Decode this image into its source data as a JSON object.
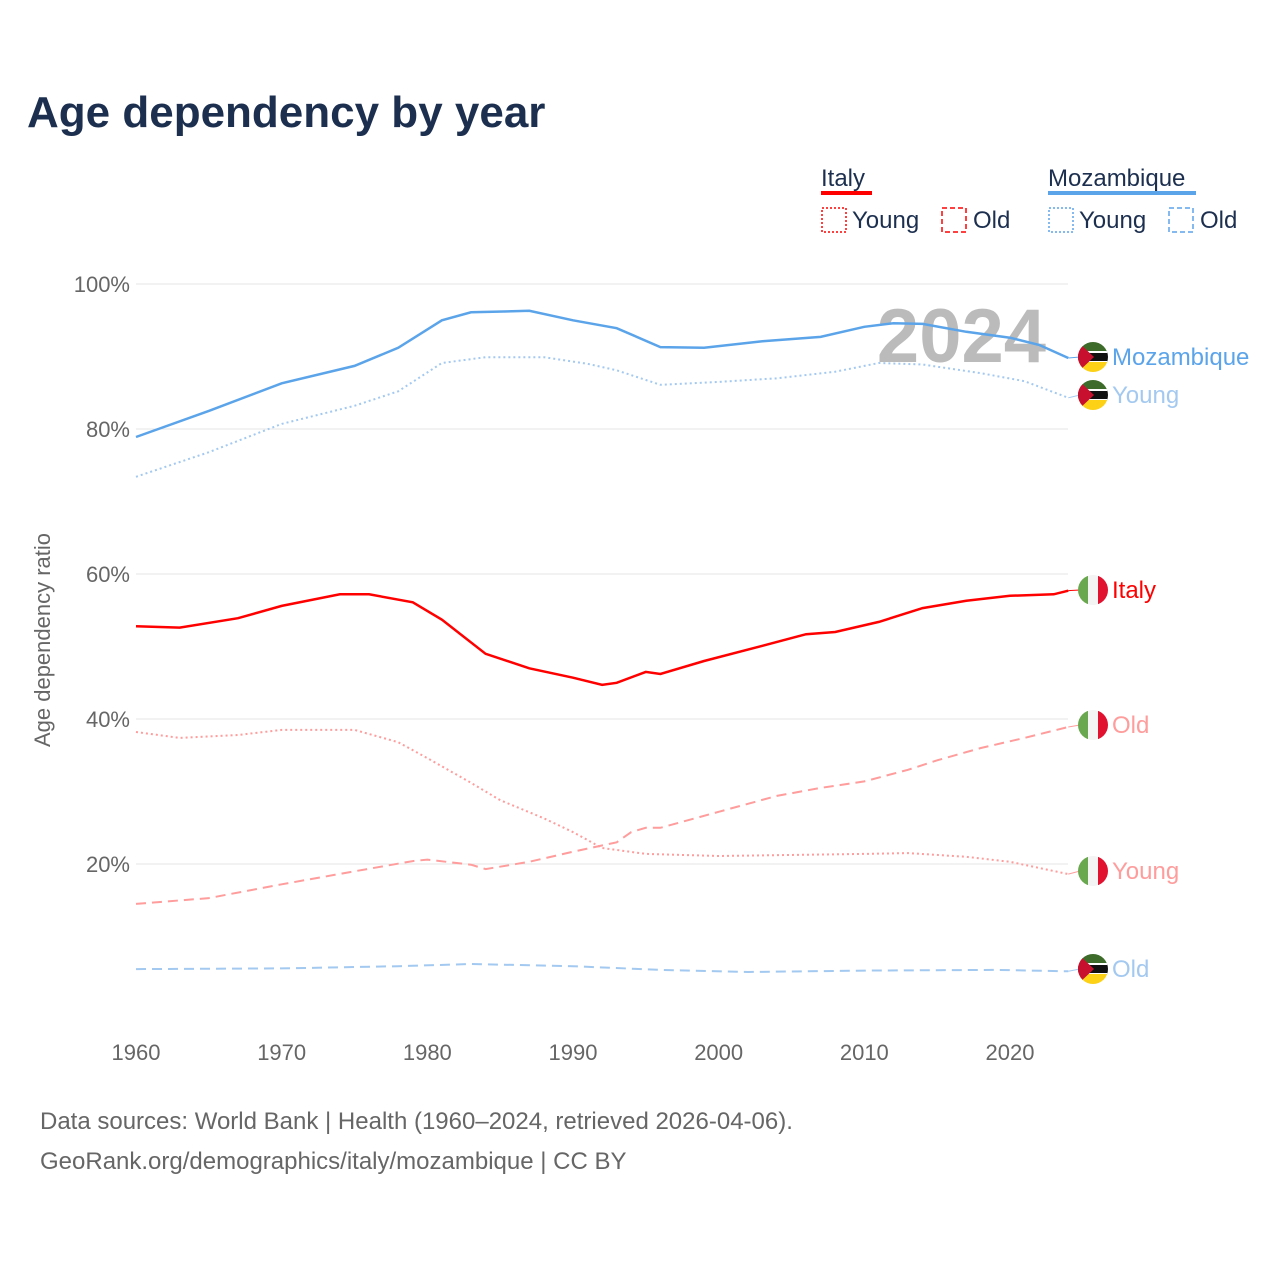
{
  "title": "Age dependency by year",
  "footer": {
    "line1": "Data sources: World Bank | Health (1960–2024, retrieved 2026-04-06).",
    "line2": "GeoRank.org/demographics/italy/mozambique | CC BY"
  },
  "legend": {
    "italy": "Italy",
    "mozambique": "Mozambique",
    "young": "Young",
    "old": "Old"
  },
  "year_watermark": "2024",
  "colors": {
    "italy": "#ff0000",
    "italy_light": "#ff9c9c",
    "moz": "#5ba4ea",
    "moz_light": "#a3c9f0"
  },
  "chart_data": {
    "type": "line",
    "title": "Age dependency by year",
    "ylabel": "Age dependency ratio",
    "xlim": [
      1960,
      2024
    ],
    "ylim": [
      0,
      100
    ],
    "x_ticks": [
      "1960",
      "1970",
      "1980",
      "1990",
      "2000",
      "2010",
      "2020"
    ],
    "y_ticks": [
      "20%",
      "40%",
      "60%",
      "80%",
      "100%"
    ],
    "series": [
      {
        "name": "Mozambique",
        "end_label": "Mozambique",
        "country": "moz",
        "style": "solid",
        "color": "#5ba4ea",
        "points": [
          [
            1960,
            78.9
          ],
          [
            1965,
            82.5
          ],
          [
            1970,
            86.3
          ],
          [
            1975,
            88.7
          ],
          [
            1978,
            91.2
          ],
          [
            1981,
            95.0
          ],
          [
            1983,
            96.1
          ],
          [
            1987,
            96.3
          ],
          [
            1990,
            95.0
          ],
          [
            1993,
            93.9
          ],
          [
            1996,
            91.3
          ],
          [
            1999,
            91.2
          ],
          [
            2003,
            92.1
          ],
          [
            2007,
            92.7
          ],
          [
            2010,
            94.1
          ],
          [
            2012,
            94.6
          ],
          [
            2014,
            94.5
          ],
          [
            2017,
            93.4
          ],
          [
            2020,
            92.6
          ],
          [
            2022,
            91.6
          ],
          [
            2024,
            89.8
          ]
        ]
      },
      {
        "name": "Mozambique Young",
        "end_label": "Young",
        "country": "moz",
        "style": "dotted",
        "color": "#a3c9f0",
        "points": [
          [
            1960,
            73.4
          ],
          [
            1965,
            76.8
          ],
          [
            1970,
            80.7
          ],
          [
            1975,
            83.2
          ],
          [
            1978,
            85.2
          ],
          [
            1981,
            89.1
          ],
          [
            1984,
            89.9
          ],
          [
            1988,
            89.9
          ],
          [
            1991,
            89.0
          ],
          [
            1993,
            88.1
          ],
          [
            1996,
            86.1
          ],
          [
            2000,
            86.5
          ],
          [
            2004,
            87.0
          ],
          [
            2008,
            87.9
          ],
          [
            2011,
            89.1
          ],
          [
            2014,
            88.9
          ],
          [
            2018,
            87.7
          ],
          [
            2021,
            86.6
          ],
          [
            2024,
            84.3
          ]
        ]
      },
      {
        "name": "Mozambique Old",
        "end_label": "Old",
        "country": "moz",
        "style": "dashed",
        "color": "#a3c9f0",
        "points": [
          [
            1960,
            5.5
          ],
          [
            1970,
            5.6
          ],
          [
            1978,
            5.9
          ],
          [
            1983,
            6.2
          ],
          [
            1990,
            5.9
          ],
          [
            1996,
            5.4
          ],
          [
            2002,
            5.1
          ],
          [
            2010,
            5.3
          ],
          [
            2019,
            5.4
          ],
          [
            2024,
            5.2
          ]
        ]
      },
      {
        "name": "Italy",
        "end_label": "Italy",
        "country": "italy",
        "style": "solid",
        "color": "#ff0000",
        "points": [
          [
            1960,
            52.8
          ],
          [
            1963,
            52.6
          ],
          [
            1967,
            53.9
          ],
          [
            1970,
            55.6
          ],
          [
            1974,
            57.2
          ],
          [
            1976,
            57.2
          ],
          [
            1979,
            56.1
          ],
          [
            1981,
            53.7
          ],
          [
            1984,
            49.0
          ],
          [
            1987,
            47.0
          ],
          [
            1990,
            45.7
          ],
          [
            1992,
            44.7
          ],
          [
            1993,
            45.0
          ],
          [
            1995,
            46.5
          ],
          [
            1996,
            46.2
          ],
          [
            1999,
            48.0
          ],
          [
            2003,
            50.1
          ],
          [
            2006,
            51.7
          ],
          [
            2008,
            52.0
          ],
          [
            2011,
            53.4
          ],
          [
            2014,
            55.3
          ],
          [
            2017,
            56.3
          ],
          [
            2020,
            57.0
          ],
          [
            2023,
            57.2
          ],
          [
            2024,
            57.7
          ]
        ]
      },
      {
        "name": "Italy Old",
        "end_label": "Old",
        "country": "italy",
        "style": "dashed",
        "color": "#ff9c9c",
        "points": [
          [
            1960,
            14.5
          ],
          [
            1965,
            15.3
          ],
          [
            1970,
            17.2
          ],
          [
            1975,
            19.0
          ],
          [
            1979,
            20.4
          ],
          [
            1980,
            20.6
          ],
          [
            1983,
            19.9
          ],
          [
            1984,
            19.3
          ],
          [
            1987,
            20.3
          ],
          [
            1990,
            21.7
          ],
          [
            1993,
            23.0
          ],
          [
            1994,
            24.4
          ],
          [
            1995,
            25.0
          ],
          [
            1996,
            25.0
          ],
          [
            2000,
            27.2
          ],
          [
            2004,
            29.4
          ],
          [
            2007,
            30.5
          ],
          [
            2010,
            31.4
          ],
          [
            2013,
            33.0
          ],
          [
            2015,
            34.3
          ],
          [
            2018,
            36.0
          ],
          [
            2021,
            37.4
          ],
          [
            2024,
            38.9
          ]
        ]
      },
      {
        "name": "Italy Young",
        "end_label": "Young",
        "country": "italy",
        "style": "dotted",
        "color": "#ff9c9c",
        "points": [
          [
            1960,
            38.2
          ],
          [
            1963,
            37.4
          ],
          [
            1967,
            37.8
          ],
          [
            1970,
            38.5
          ],
          [
            1975,
            38.5
          ],
          [
            1978,
            36.8
          ],
          [
            1980,
            34.6
          ],
          [
            1983,
            31.2
          ],
          [
            1985,
            28.8
          ],
          [
            1988,
            26.3
          ],
          [
            1990,
            24.4
          ],
          [
            1992,
            22.2
          ],
          [
            1995,
            21.4
          ],
          [
            2000,
            21.1
          ],
          [
            2010,
            21.4
          ],
          [
            2013,
            21.5
          ],
          [
            2017,
            21.0
          ],
          [
            2020,
            20.3
          ],
          [
            2024,
            18.6
          ]
        ]
      }
    ]
  }
}
